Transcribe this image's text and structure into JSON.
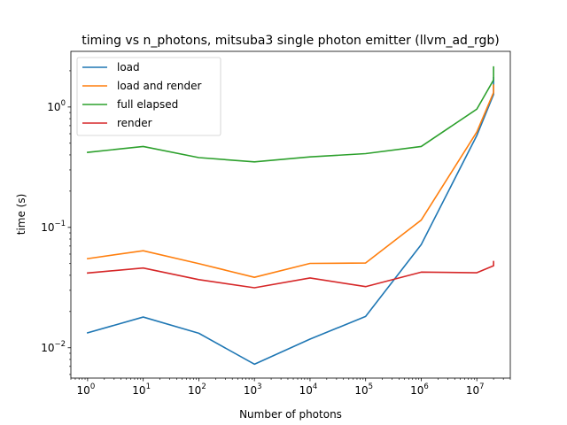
{
  "chart_data": {
    "type": "line",
    "title": "timing vs n_photons, mitsuba3 single photon emitter (llvm_ad_rgb)",
    "xlabel": "Number of photons",
    "ylabel": "time (s)",
    "xscale": "log",
    "yscale": "log",
    "xlim": [
      0.5,
      40000000
    ],
    "ylim": [
      0.0056,
      2.9
    ],
    "x_ticks": [
      {
        "base": "10",
        "exp": "0",
        "value": 1
      },
      {
        "base": "10",
        "exp": "1",
        "value": 10
      },
      {
        "base": "10",
        "exp": "2",
        "value": 100
      },
      {
        "base": "10",
        "exp": "3",
        "value": 1000
      },
      {
        "base": "10",
        "exp": "4",
        "value": 10000
      },
      {
        "base": "10",
        "exp": "5",
        "value": 100000
      },
      {
        "base": "10",
        "exp": "6",
        "value": 1000000
      },
      {
        "base": "10",
        "exp": "7",
        "value": 10000000
      }
    ],
    "y_ticks": [
      {
        "base": "10",
        "exp": "−2",
        "value": 0.01
      },
      {
        "base": "10",
        "exp": "−1",
        "value": 0.1
      },
      {
        "base": "10",
        "exp": "0",
        "value": 1
      }
    ],
    "grid": false,
    "legend_position": "top-left",
    "series": [
      {
        "name": "load",
        "color": "#1f77b4",
        "x": [
          1,
          10,
          100,
          1000,
          10000,
          100000,
          1000000,
          10000000,
          20000000,
          20000000
        ],
        "y": [
          0.0133,
          0.018,
          0.0132,
          0.0073,
          0.0118,
          0.0182,
          0.072,
          0.58,
          1.27,
          1.75
        ]
      },
      {
        "name": "load and render",
        "color": "#ff7f0e",
        "x": [
          1,
          10,
          100,
          1000,
          10000,
          100000,
          1000000,
          10000000,
          20000000,
          20000000
        ],
        "y": [
          0.055,
          0.064,
          0.05,
          0.0385,
          0.0502,
          0.0506,
          0.115,
          0.62,
          1.32,
          1.52
        ]
      },
      {
        "name": "full elapsed",
        "color": "#2ca02c",
        "x": [
          1,
          10,
          100,
          1000,
          10000,
          100000,
          1000000,
          10000000,
          20000000,
          20000000
        ],
        "y": [
          0.42,
          0.47,
          0.38,
          0.35,
          0.385,
          0.41,
          0.47,
          0.96,
          1.68,
          2.15
        ]
      },
      {
        "name": "render",
        "color": "#d62728",
        "x": [
          1,
          10,
          100,
          1000,
          10000,
          100000,
          1000000,
          10000000,
          20000000,
          20000000
        ],
        "y": [
          0.0418,
          0.046,
          0.0368,
          0.0315,
          0.038,
          0.0322,
          0.0425,
          0.042,
          0.048,
          0.052
        ]
      }
    ]
  }
}
